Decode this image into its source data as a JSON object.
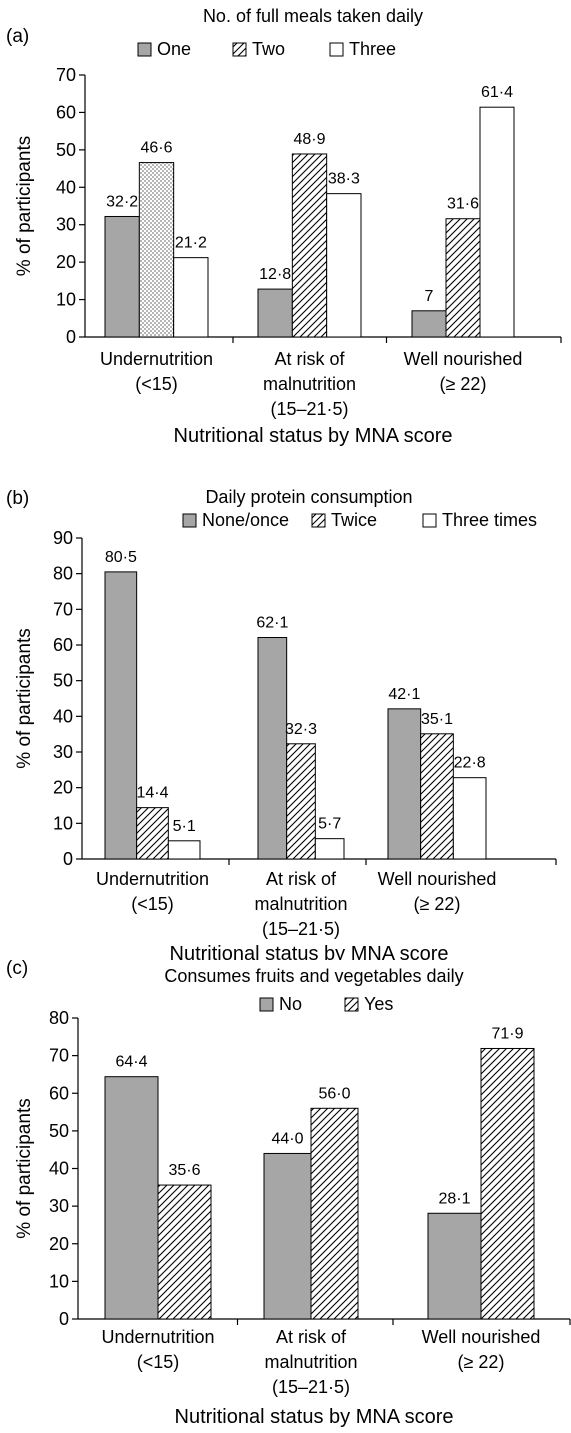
{
  "chart_data": [
    {
      "panel_label": "(a)",
      "type": "bar",
      "title": "No. of full meals taken daily",
      "xlabel": "Nutritional status by MNA score",
      "ylabel": "% of participants",
      "ylim": [
        0,
        70
      ],
      "yticks": [
        "0",
        "10",
        "20",
        "30",
        "40",
        "50",
        "60",
        "70"
      ],
      "categories": [
        [
          "Undernutrition",
          "(<15)"
        ],
        [
          "At risk of",
          "malnutrition",
          "(15–21·5)"
        ],
        [
          "Well nourished",
          "(≥ 22)"
        ]
      ],
      "legend_position": "top",
      "series": [
        {
          "name": "One",
          "values": [
            32.2,
            12.8,
            7
          ],
          "labels": [
            "32·2",
            "12·8",
            "7"
          ],
          "pattern": "grey"
        },
        {
          "name": "Two",
          "values": [
            46.6,
            48.9,
            31.6
          ],
          "labels": [
            "46·6",
            "48·9",
            "31·6"
          ],
          "pattern": "hatch"
        },
        {
          "name": "Three",
          "values": [
            21.2,
            38.3,
            61.4
          ],
          "labels": [
            "21·2",
            "38·3",
            "61·4"
          ],
          "pattern": "white"
        }
      ],
      "pattern_overrides": [
        {
          "series": 1,
          "category": 0,
          "pattern": "dots"
        }
      ]
    },
    {
      "panel_label": "(b)",
      "type": "bar",
      "title": "Daily protein consumption",
      "xlabel": "Nutritional status by MNA score",
      "ylabel": "% of participants",
      "ylim": [
        0,
        90
      ],
      "yticks": [
        "0",
        "10",
        "20",
        "30",
        "40",
        "50",
        "60",
        "70",
        "80",
        "90"
      ],
      "categories": [
        [
          "Undernutrition",
          "(<15)"
        ],
        [
          "At risk of",
          "malnutrition",
          "(15–21·5)"
        ],
        [
          "Well nourished",
          "(≥ 22)"
        ]
      ],
      "legend_position": "top-right",
      "series": [
        {
          "name": "None/once",
          "values": [
            80.5,
            62.1,
            42.1
          ],
          "labels": [
            "80·5",
            "62·1",
            "42·1"
          ],
          "pattern": "grey"
        },
        {
          "name": "Twice",
          "values": [
            14.4,
            32.3,
            35.1
          ],
          "labels": [
            "14·4",
            "32·3",
            "35·1"
          ],
          "pattern": "hatch"
        },
        {
          "name": "Three times",
          "values": [
            5.1,
            5.7,
            22.8
          ],
          "labels": [
            "5·1",
            "5·7",
            "22·8"
          ],
          "pattern": "white"
        }
      ],
      "pattern_overrides": []
    },
    {
      "panel_label": "(c)",
      "type": "bar",
      "title": "Consumes fruits and vegetables daily",
      "xlabel": "Nutritional status by MNA score",
      "ylabel": "% of participants",
      "ylim": [
        0,
        80
      ],
      "yticks": [
        "0",
        "10",
        "20",
        "30",
        "40",
        "50",
        "60",
        "70",
        "80"
      ],
      "categories": [
        [
          "Undernutrition",
          "(<15)"
        ],
        [
          "At risk of",
          "malnutrition",
          "(15–21·5)"
        ],
        [
          "Well nourished",
          "(≥ 22)"
        ]
      ],
      "legend_position": "top",
      "series": [
        {
          "name": "No",
          "values": [
            64.4,
            44.0,
            28.1
          ],
          "labels": [
            "64·4",
            "44·0",
            "28·1"
          ],
          "pattern": "grey"
        },
        {
          "name": "Yes",
          "values": [
            35.6,
            56.0,
            71.9
          ],
          "labels": [
            "35·6",
            "56·0",
            "71·9"
          ],
          "pattern": "hatch"
        }
      ],
      "pattern_overrides": []
    }
  ],
  "colors": {
    "grey_bar": "#a6a6a6",
    "white_bar": "#ffffff",
    "stroke": "#000000"
  }
}
